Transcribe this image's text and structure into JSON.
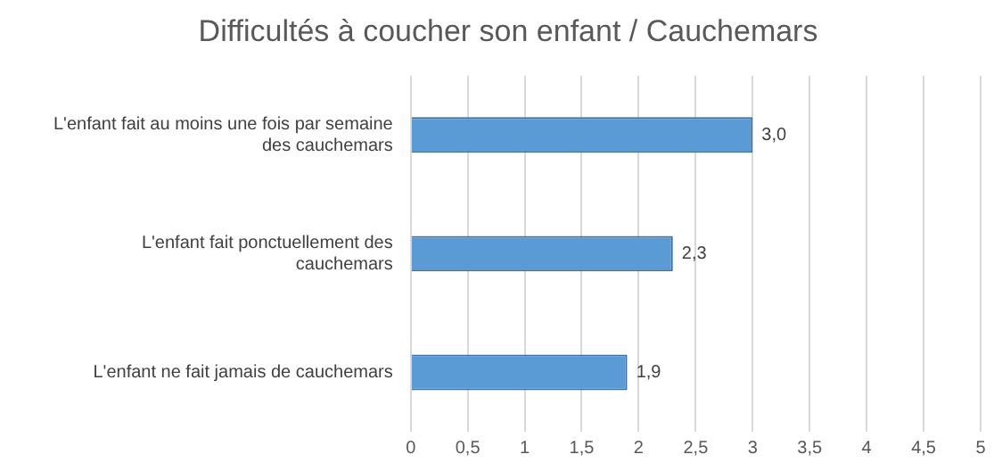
{
  "chart_data": {
    "type": "bar",
    "orientation": "horizontal",
    "title": "Difficultés à coucher son enfant / Cauchemars",
    "categories": [
      "L'enfant fait au moins une fois par semaine des cauchemars",
      "L'enfant fait ponctuellement des cauchemars",
      "L'enfant ne fait jamais de cauchemars"
    ],
    "values": [
      3.0,
      2.3,
      1.9
    ],
    "color": "#5b9bd5",
    "value_labels": [
      "3,0",
      "2,3",
      "1,9"
    ],
    "xlim": [
      0,
      5
    ],
    "xticks": [
      0,
      {
        "value": 0.5,
        "label": "0,5"
      },
      1,
      {
        "value": 1.5,
        "label": "1,5"
      },
      2,
      {
        "value": 2.5,
        "label": "2,5"
      },
      3,
      {
        "value": 3.5,
        "label": "3,5"
      },
      4,
      {
        "value": 4.5,
        "label": "4,5"
      },
      5
    ],
    "grid": "x",
    "legend": false
  }
}
